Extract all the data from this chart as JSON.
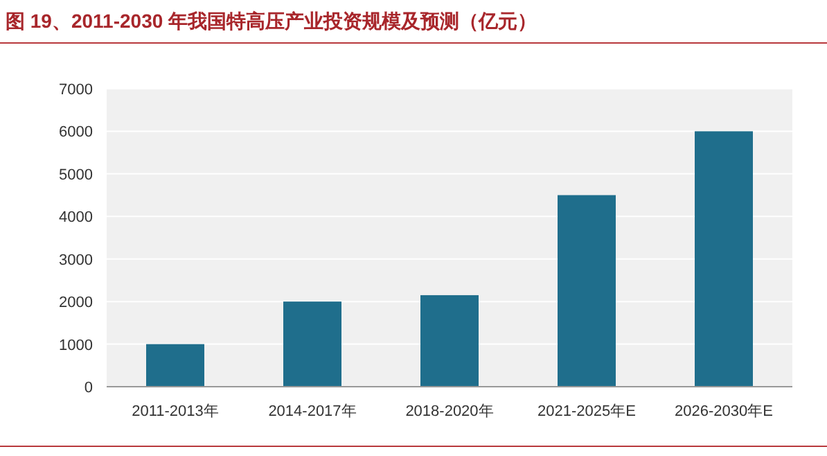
{
  "chart_data": {
    "type": "bar",
    "title": "图 19、2011-2030 年我国特高压产业投资规模及预测（亿元）",
    "categories": [
      "2011-2013年",
      "2014-2017年",
      "2018-2020年",
      "2021-2025年E",
      "2026-2030年E"
    ],
    "values": [
      1000,
      2000,
      2150,
      4500,
      6000
    ],
    "color": "#1f6e8c",
    "ylim": [
      0,
      7000
    ],
    "yticks": [
      0,
      1000,
      2000,
      3000,
      4000,
      5000,
      6000,
      7000
    ],
    "grid": "y"
  }
}
